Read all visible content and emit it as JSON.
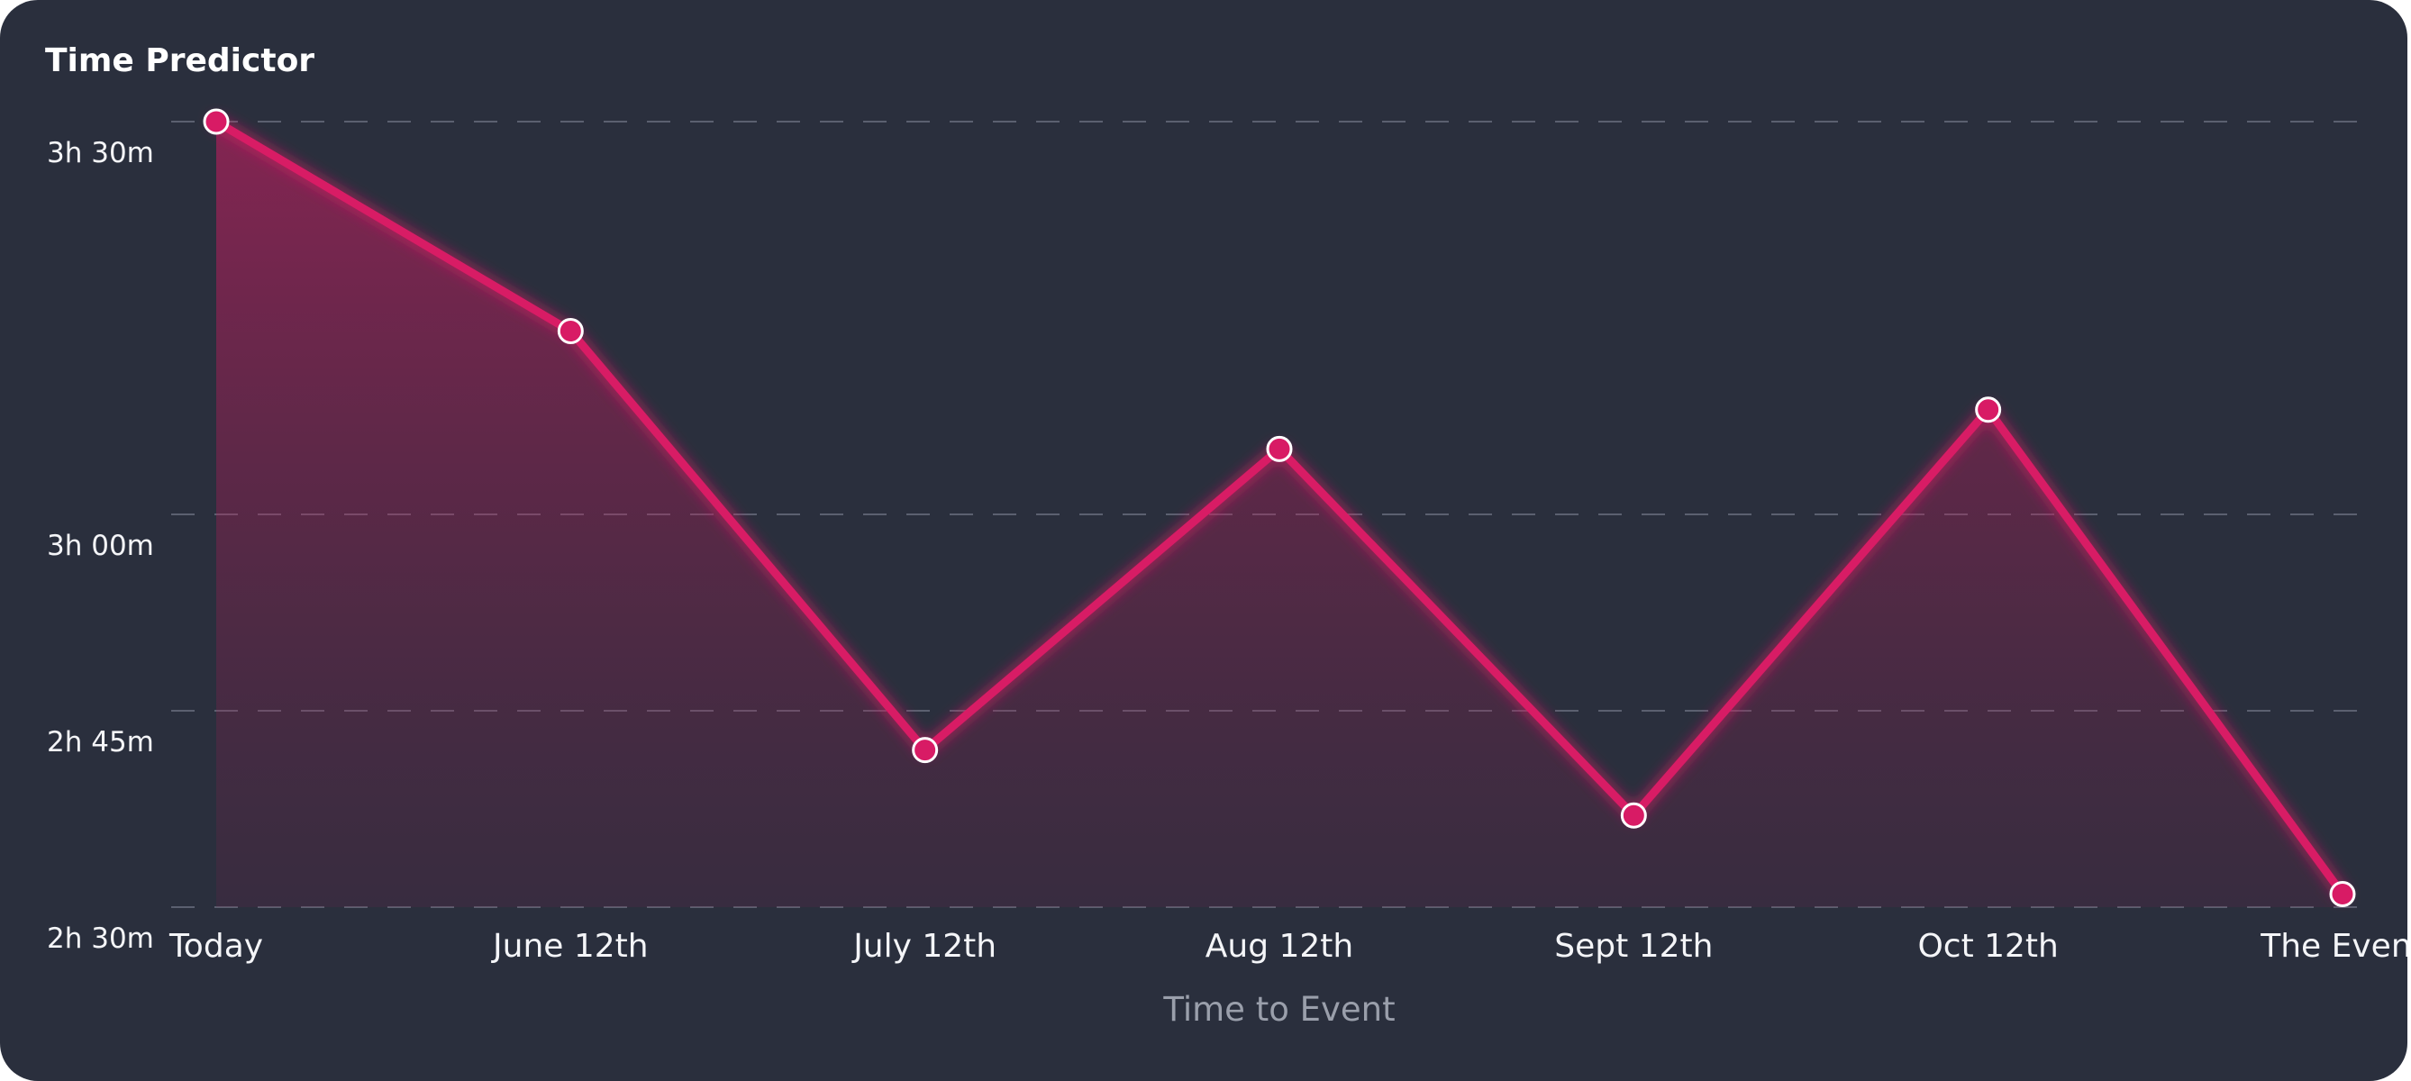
{
  "chart_data": {
    "type": "area",
    "title": "Time Predictor",
    "xlabel": "Time to Event",
    "ylabel": "",
    "categories": [
      "Today",
      "June 12th",
      "July 12th",
      "Aug 12th",
      "Sept 12th",
      "Oct 12th",
      "The Event"
    ],
    "y_ticks": [
      {
        "value": 150,
        "label": "2h 30m"
      },
      {
        "value": 165,
        "label": "2h 45m"
      },
      {
        "value": 180,
        "label": "3h 00m"
      },
      {
        "value": 210,
        "label": "3h 30m"
      }
    ],
    "ylim": [
      150,
      210
    ],
    "series": [
      {
        "values": [
          210,
          194,
          162,
          185,
          157,
          188,
          151
        ],
        "color": "#d81b65"
      }
    ],
    "grid": true,
    "gridline_style": "dashed",
    "legend": "none"
  },
  "colors": {
    "background": "#2a2f3d",
    "line": "#d81b65",
    "marker_fill": "#d81b65",
    "marker_stroke": "#ffffff",
    "gridline": "#5b6070",
    "text": "#f4f5f8",
    "axis_title": "#9a9fab"
  }
}
